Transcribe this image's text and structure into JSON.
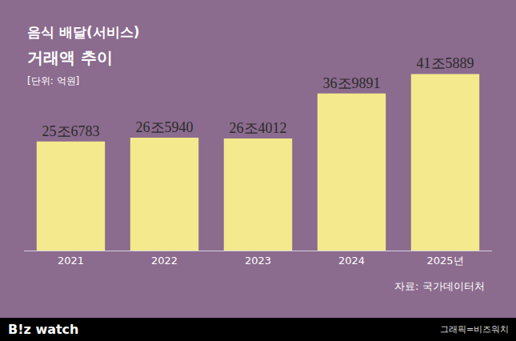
{
  "chart_data": {
    "type": "bar",
    "title": "음식 배달(서비스)",
    "subtitle": "거래액 추이",
    "unit_label": "[단위: 억원]",
    "source": "자료: 국가데이터처",
    "footer": [
      "B!z watch",
      "그래픽=비즈워치"
    ],
    "categories": [
      "2021",
      "2022",
      "2023",
      "2024",
      "2025년"
    ],
    "values": [
      256783,
      265940,
      264012,
      369891,
      415889
    ],
    "value_labels": [
      "25조6783",
      "26조5940",
      "26조4012",
      "36조9891",
      "41조5889"
    ],
    "color": "#f4e98c",
    "ylim": [
      0,
      460000
    ],
    "data_labels": true,
    "tick_labels": "x",
    "grid": false
  }
}
